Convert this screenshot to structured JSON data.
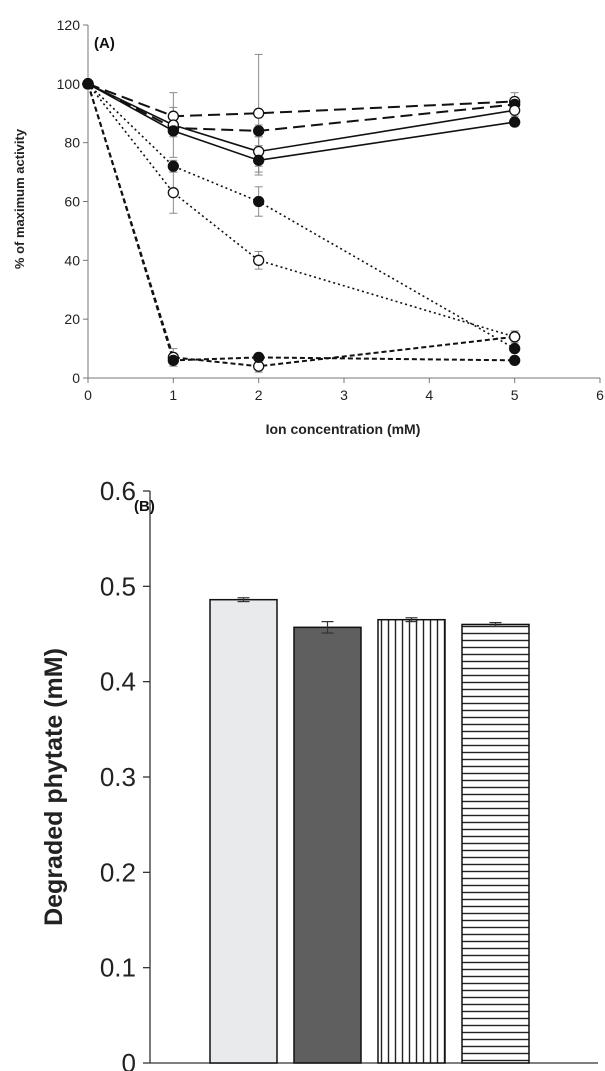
{
  "chart_data": [
    {
      "type": "line",
      "panel_label": "(A)",
      "xlabel": "Ion concentration (mM)",
      "ylabel": "% of maximum activity",
      "xlim": [
        0,
        6
      ],
      "ylim": [
        0,
        120
      ],
      "xticks": [
        0,
        1,
        2,
        3,
        4,
        5,
        6
      ],
      "yticks": [
        0,
        20,
        40,
        60,
        80,
        100,
        120
      ],
      "grid": false,
      "legend": "none",
      "x": [
        0,
        1,
        2,
        5
      ],
      "series": [
        {
          "line_style": "long-dash",
          "marker": "open",
          "values": [
            100,
            89,
            90,
            94
          ],
          "errors": [
            0,
            3,
            20,
            3
          ]
        },
        {
          "line_style": "long-dash",
          "marker": "filled",
          "values": [
            100,
            85,
            84,
            93
          ],
          "errors": [
            0,
            2,
            2,
            2
          ]
        },
        {
          "line_style": "solid",
          "marker": "open",
          "values": [
            100,
            86,
            77,
            91
          ],
          "errors": [
            0,
            11,
            5,
            2
          ]
        },
        {
          "line_style": "solid",
          "marker": "filled",
          "values": [
            100,
            84,
            74,
            87
          ],
          "errors": [
            0,
            2,
            5,
            1
          ]
        },
        {
          "line_style": "dotted",
          "marker": "filled",
          "values": [
            100,
            72,
            60,
            10
          ],
          "errors": [
            0,
            2,
            5,
            1
          ]
        },
        {
          "line_style": "dotted",
          "marker": "open",
          "values": [
            100,
            63,
            40,
            14
          ],
          "errors": [
            0,
            7,
            3,
            2
          ]
        },
        {
          "line_style": "short-dash",
          "marker": "open",
          "values": [
            100,
            7,
            4,
            14
          ],
          "errors": [
            0,
            3,
            2,
            1
          ]
        },
        {
          "line_style": "short-dash",
          "marker": "filled",
          "values": [
            100,
            6,
            7,
            6
          ],
          "errors": [
            0,
            1,
            1,
            1
          ]
        }
      ]
    },
    {
      "type": "bar",
      "panel_label": "(B)",
      "xlabel": "",
      "ylabel": "Degraded phytate (mM)",
      "ylim": [
        0,
        0.6
      ],
      "yticks": [
        0,
        0.1,
        0.2,
        0.3,
        0.4,
        0.5,
        0.6
      ],
      "ytick_labels": [
        "0",
        "0.1",
        "0.2",
        "0.3",
        "0.4",
        "0.5",
        "0.6"
      ],
      "grid": false,
      "legend": "none",
      "bars": [
        {
          "value": 0.486,
          "error": 0.002,
          "fill": "light-gray"
        },
        {
          "value": 0.457,
          "error": 0.006,
          "fill": "dark-gray"
        },
        {
          "value": 0.465,
          "error": 0.002,
          "fill": "vertical-stripes"
        },
        {
          "value": 0.46,
          "error": 0.002,
          "fill": "horizontal-stripes"
        }
      ],
      "colors": {
        "light_gray": "#e8eaec",
        "dark_gray": "#5f5f5f",
        "stripe": "#222222"
      }
    }
  ]
}
